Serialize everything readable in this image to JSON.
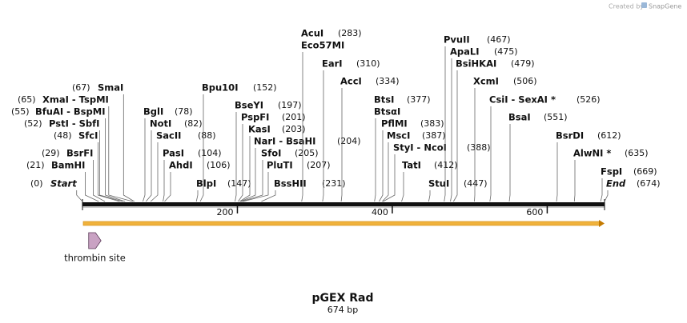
{
  "watermark": {
    "prefix": "Created by",
    "brand": "SnapGene"
  },
  "map": {
    "title": "pGEX Rad",
    "length": {
      "value": 674,
      "label": "674 bp"
    },
    "ruler_ticks": [
      200,
      400,
      600
    ],
    "features": [
      {
        "start": 1,
        "end": 674,
        "color": "#f0b23c"
      },
      {
        "name": "thrombin site",
        "start": 8,
        "end": 24,
        "color": "#c9a2c3"
      }
    ],
    "sites": [
      {
        "names": [
          "Start"
        ],
        "position": {
          "value": 0,
          "label": "(0)"
        }
      },
      {
        "names": [
          "BamHI"
        ],
        "position": {
          "value": 21,
          "label": "(21)"
        }
      },
      {
        "names": [
          "BsrFI"
        ],
        "position": {
          "value": 29,
          "label": "(29)"
        }
      },
      {
        "names": [
          "SfcI"
        ],
        "position": {
          "value": 48,
          "label": "(48)"
        }
      },
      {
        "names": [
          "PstI - SbfI"
        ],
        "position": {
          "value": 52,
          "label": "(52)"
        }
      },
      {
        "names": [
          "BfuAI - BspMI"
        ],
        "position": {
          "value": 55,
          "label": "(55)"
        }
      },
      {
        "names": [
          "XmaI - TspMI"
        ],
        "position": {
          "value": 65,
          "label": "(65)"
        }
      },
      {
        "names": [
          "SmaI"
        ],
        "position": {
          "value": 67,
          "label": "(67)"
        }
      },
      {
        "names": [
          "BglI"
        ],
        "position": {
          "value": 78,
          "label": "(78)"
        }
      },
      {
        "names": [
          "NotI"
        ],
        "position": {
          "value": 82,
          "label": "(82)"
        }
      },
      {
        "names": [
          "SacII"
        ],
        "position": {
          "value": 88,
          "label": "(88)"
        }
      },
      {
        "names": [
          "PasI"
        ],
        "position": {
          "value": 104,
          "label": "(104)"
        }
      },
      {
        "names": [
          "AhdI"
        ],
        "position": {
          "value": 106,
          "label": "(106)"
        }
      },
      {
        "names": [
          "BlpI"
        ],
        "position": {
          "value": 147,
          "label": "(147)"
        }
      },
      {
        "names": [
          "Bpu10I"
        ],
        "position": {
          "value": 152,
          "label": "(152)"
        }
      },
      {
        "names": [
          "BseYI"
        ],
        "position": {
          "value": 197,
          "label": "(197)"
        }
      },
      {
        "names": [
          "PspFI"
        ],
        "position": {
          "value": 201,
          "label": "(201)"
        }
      },
      {
        "names": [
          "KasI"
        ],
        "position": {
          "value": 203,
          "label": "(203)"
        }
      },
      {
        "names": [
          "NarI - BsaHI"
        ],
        "position": {
          "value": 204,
          "label": "(204)"
        }
      },
      {
        "names": [
          "SfoI"
        ],
        "position": {
          "value": 205,
          "label": "(205)"
        }
      },
      {
        "names": [
          "PluTI"
        ],
        "position": {
          "value": 207,
          "label": "(207)"
        }
      },
      {
        "names": [
          "BssHII"
        ],
        "position": {
          "value": 231,
          "label": "(231)"
        }
      },
      {
        "names": [
          "AcuI",
          "Eco57MI"
        ],
        "position": {
          "value": 283,
          "label": "(283)"
        }
      },
      {
        "names": [
          "EarI"
        ],
        "position": {
          "value": 310,
          "label": "(310)"
        }
      },
      {
        "names": [
          "AccI"
        ],
        "position": {
          "value": 334,
          "label": "(334)"
        }
      },
      {
        "names": [
          "BtsI",
          "BtsαI"
        ],
        "position": {
          "value": 377,
          "label": "(377)"
        }
      },
      {
        "names": [
          "PflMI"
        ],
        "position": {
          "value": 383,
          "label": "(383)"
        }
      },
      {
        "names": [
          "MscI"
        ],
        "position": {
          "value": 387,
          "label": "(387)"
        }
      },
      {
        "names": [
          "StyI - NcoI"
        ],
        "position": {
          "value": 388,
          "label": "(388)"
        }
      },
      {
        "names": [
          "TatI"
        ],
        "position": {
          "value": 412,
          "label": "(412)"
        }
      },
      {
        "names": [
          "StuI"
        ],
        "position": {
          "value": 447,
          "label": "(447)"
        }
      },
      {
        "names": [
          "PvuII"
        ],
        "position": {
          "value": 467,
          "label": "(467)"
        }
      },
      {
        "names": [
          "ApaLI"
        ],
        "position": {
          "value": 475,
          "label": "(475)"
        }
      },
      {
        "names": [
          "BsiHKAI"
        ],
        "position": {
          "value": 479,
          "label": "(479)"
        }
      },
      {
        "names": [
          "XcmI"
        ],
        "position": {
          "value": 506,
          "label": "(506)"
        }
      },
      {
        "names": [
          "CsiI - SexAI *"
        ],
        "position": {
          "value": 526,
          "label": "(526)"
        }
      },
      {
        "names": [
          "BsaI"
        ],
        "position": {
          "value": 551,
          "label": "(551)"
        }
      },
      {
        "names": [
          "BsrDI"
        ],
        "position": {
          "value": 612,
          "label": "(612)"
        }
      },
      {
        "names": [
          "AlwNI *"
        ],
        "position": {
          "value": 635,
          "label": "(635)"
        }
      },
      {
        "names": [
          "FspI"
        ],
        "position": {
          "value": 669,
          "label": "(669)"
        }
      },
      {
        "names": [
          "End"
        ],
        "position": {
          "value": 674,
          "label": "(674)"
        }
      }
    ]
  }
}
